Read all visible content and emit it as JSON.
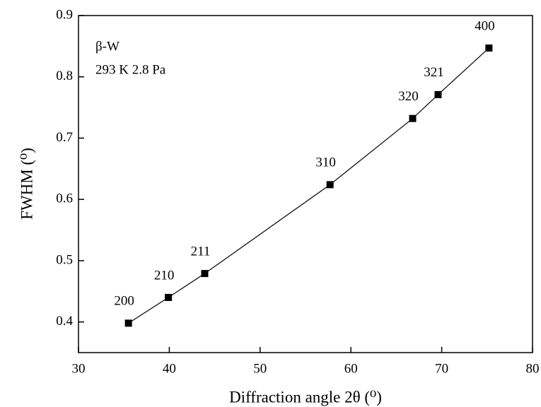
{
  "chart_data": {
    "type": "line",
    "x_label": "Diffraction angle 2θ (⁰)",
    "y_label": "FWHM (⁰)",
    "annotations": [
      "β-W",
      "293 K 2.8 Pa"
    ],
    "series": [
      {
        "color": "#000000",
        "x": [
          35.5,
          39.9,
          43.9,
          57.7,
          66.8,
          69.6,
          75.2
        ],
        "values": [
          0.398,
          0.44,
          0.479,
          0.624,
          0.732,
          0.771,
          0.847
        ],
        "point_labels": [
          "200",
          "210",
          "211",
          "310",
          "320",
          "321",
          "400"
        ]
      }
    ],
    "xlim": [
      30,
      80
    ],
    "xticks": [
      30,
      40,
      50,
      60,
      70,
      80
    ],
    "ylim": [
      0.35,
      0.9
    ],
    "yticks": [
      0.4,
      0.5,
      0.6,
      0.7,
      0.8,
      0.9
    ]
  }
}
